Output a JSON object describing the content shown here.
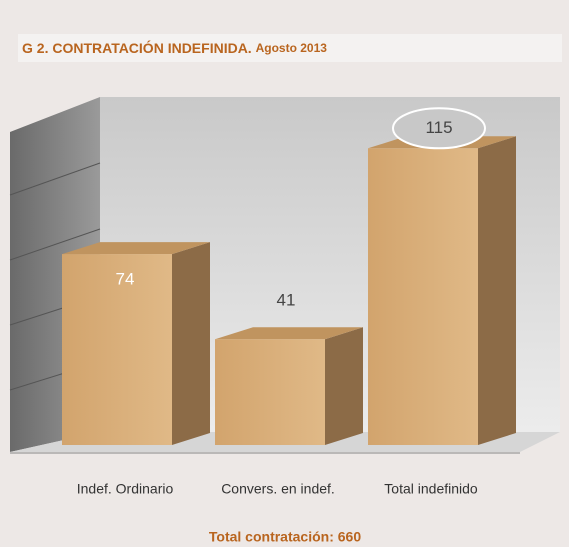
{
  "chart_data": {
    "type": "bar3d",
    "title": "G 2. CONTRATACIÓN INDEFINIDA.",
    "subtitle": "Agosto 2013",
    "categories": [
      "Indef. Ordinario",
      "Convers. en indef.",
      "Total indefinido"
    ],
    "values": [
      74,
      41,
      115
    ],
    "color": "#d9b07e",
    "annotation": "Total contratación: 660"
  }
}
